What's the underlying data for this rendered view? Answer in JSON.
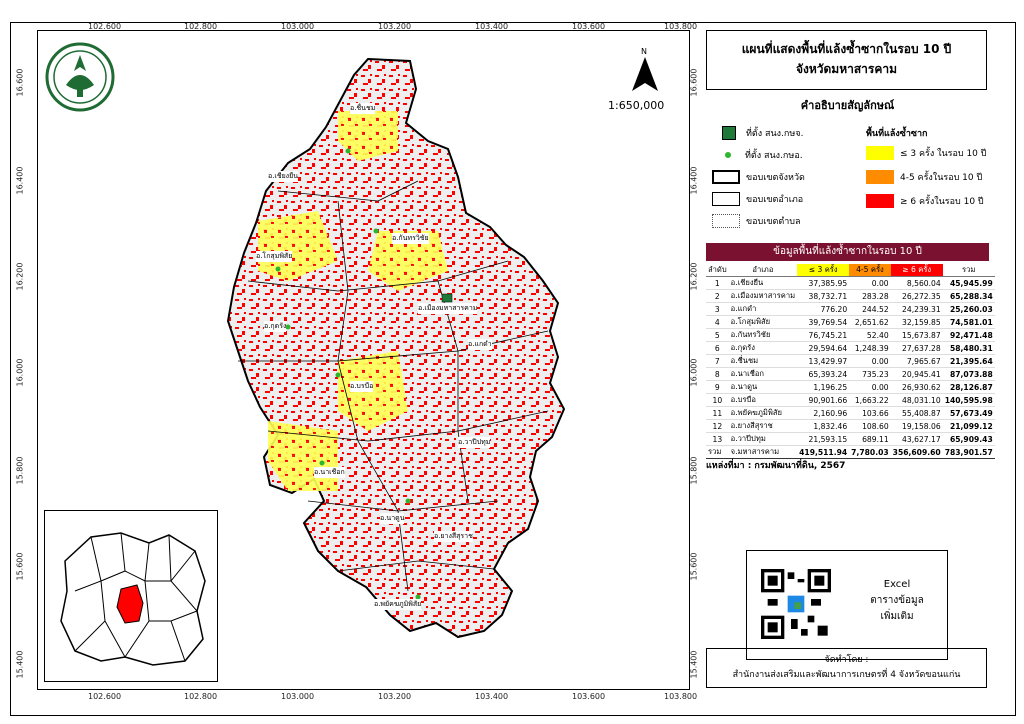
{
  "map": {
    "title_line1": "แผนที่แสดงพื้นที่แล้งซ้ำซากในรอบ 10 ปี",
    "title_line2": "จังหวัดมหาสารคาม",
    "scale": "1:650,000",
    "north_label": "N",
    "x_ticks": [
      "102.600",
      "102.800",
      "103.000",
      "103.200",
      "103.400",
      "103.600",
      "103.800"
    ],
    "y_ticks": [
      "16.600",
      "16.400",
      "16.200",
      "16.000",
      "15.800",
      "15.600",
      "15.400"
    ],
    "district_labels": [
      "อ.ชื่นชม",
      "อ.เชียงยืน",
      "อ.กันทรวิชัย",
      "อ.โกสุมพิสัย",
      "อ.เมืองมหาสารคาม",
      "อ.แกดำ",
      "อ.กุดรัง",
      "อ.บรบือ",
      "อ.วาปีปทุม",
      "อ.นาเชือก",
      "อ.นาดูน",
      "อ.ยางสีสุราช",
      "อ.พยัคฆภูมิพิสัย"
    ]
  },
  "legend": {
    "title": "คำอธิบายสัญลักษณ์",
    "office_provincial": "ที่ตั้ง สนง.กษจ.",
    "office_district": "ที่ตั้ง สนง.กษอ.",
    "province_boundary": "ขอบเขตจังหวัด",
    "district_boundary": "ขอบเขตอำเภอ",
    "subdistrict_boundary": "ขอบเขตตำบล",
    "drought_title": "พื้นที่แล้งซ้ำซาก",
    "class_low": "≤ 3 ครั้ง ในรอบ 10 ปี",
    "class_mid": "4-5 ครั้งในรอบ 10 ปี",
    "class_high": "≥ 6 ครั้งในรอบ 10 ปี",
    "colors": {
      "low": "#ffff00",
      "mid": "#ff8c00",
      "high": "#ff0000"
    }
  },
  "table": {
    "title": "ข้อมูลพื้นที่แล้งซ้ำซากในรอบ 10 ปี",
    "headers": [
      "ลำดับ",
      "อำเภอ",
      "≤ 3 ครั้ง",
      "4-5 ครั้ง",
      "≥ 6 ครั้ง",
      "รวม"
    ],
    "rows": [
      [
        "1",
        "อ.เชียงยืน",
        "37,385.95",
        "0.00",
        "8,560.04",
        "45,945.99"
      ],
      [
        "2",
        "อ.เมืองมหาสารคาม",
        "38,732.71",
        "283.28",
        "26,272.35",
        "65,288.34"
      ],
      [
        "3",
        "อ.แกดำ",
        "776.20",
        "244.52",
        "24,239.31",
        "25,260.03"
      ],
      [
        "4",
        "อ.โกสุมพิสัย",
        "39,769.54",
        "2,651.62",
        "32,159.85",
        "74,581.01"
      ],
      [
        "5",
        "อ.กันทรวิชัย",
        "76,745.21",
        "52.40",
        "15,673.87",
        "92,471.48"
      ],
      [
        "6",
        "อ.กุดรัง",
        "29,594.64",
        "1,248.39",
        "27,637.28",
        "58,480.31"
      ],
      [
        "7",
        "อ.ชื่นชม",
        "13,429.97",
        "0.00",
        "7,965.67",
        "21,395.64"
      ],
      [
        "8",
        "อ.นาเชือก",
        "65,393.24",
        "735.23",
        "20,945.41",
        "87,073.88"
      ],
      [
        "9",
        "อ.นาดูน",
        "1,196.25",
        "0.00",
        "26,930.62",
        "28,126.87"
      ],
      [
        "10",
        "อ.บรบือ",
        "90,901.66",
        "1,663.22",
        "48,031.10",
        "140,595.98"
      ],
      [
        "11",
        "อ.พยัคฆภูมิพิสัย",
        "2,160.96",
        "103.66",
        "55,408.87",
        "57,673.49"
      ],
      [
        "12",
        "อ.ยางสีสุราช",
        "1,832.46",
        "108.60",
        "19,158.06",
        "21,099.12"
      ],
      [
        "13",
        "อ.วาปีปทุม",
        "21,593.15",
        "689.11",
        "43,627.17",
        "65,909.43"
      ]
    ],
    "total": [
      "รวม",
      "จ.มหาสารคาม",
      "419,511.94",
      "7,780.03",
      "356,609.60",
      "783,901.57"
    ]
  },
  "source": "แหล่งที่มา : กรมพัฒนาที่ดิน, 2567",
  "qr_text": [
    "Excel",
    "ตารางข้อมูล",
    "เพิ่มเติม"
  ],
  "credit": {
    "label": "จัดทำโดย :",
    "org": "สำนักงานส่งเสริมและพัฒนาการเกษตรที่ 4 จังหวัดขอนแก่น"
  }
}
